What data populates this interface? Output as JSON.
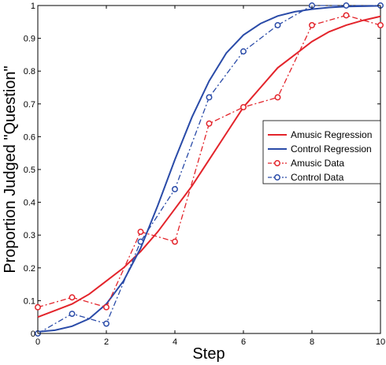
{
  "chart_data": {
    "type": "line",
    "title": "",
    "xlabel": "Step",
    "ylabel": "Proportion Judged \"Question\"",
    "xlim": [
      0,
      10
    ],
    "ylim": [
      0,
      1
    ],
    "x_ticks": [
      0,
      2,
      4,
      6,
      8,
      10
    ],
    "y_ticks": [
      0,
      0.1,
      0.2,
      0.3,
      0.4,
      0.5,
      0.6,
      0.7,
      0.8,
      0.9,
      1
    ],
    "y_tick_labels": [
      "0",
      "0.1",
      "0.2",
      "0.3",
      "0.4",
      "0.5",
      "0.6",
      "0.7",
      "0.8",
      "0.9",
      "1"
    ],
    "x_tick_labels": [
      "0",
      "2",
      "4",
      "6",
      "8",
      "10"
    ],
    "grid": false,
    "legend_position": "right",
    "series": [
      {
        "name": "Amusic Regression",
        "kind": "regression",
        "color": "#e3242b",
        "style": "solid",
        "x": [
          0,
          0.5,
          1,
          1.5,
          2,
          2.5,
          3,
          3.5,
          4,
          4.5,
          5,
          5.5,
          6,
          6.5,
          7,
          7.5,
          8,
          8.5,
          9,
          9.5,
          10
        ],
        "values": [
          0.05,
          0.07,
          0.09,
          0.12,
          0.16,
          0.2,
          0.25,
          0.31,
          0.38,
          0.45,
          0.53,
          0.61,
          0.69,
          0.75,
          0.81,
          0.85,
          0.89,
          0.92,
          0.94,
          0.955,
          0.967
        ]
      },
      {
        "name": "Control Regression",
        "kind": "regression",
        "color": "#2a4ba8",
        "style": "solid",
        "x": [
          0,
          0.5,
          1,
          1.5,
          2,
          2.5,
          3,
          3.5,
          4,
          4.5,
          5,
          5.5,
          6,
          6.5,
          7,
          7.5,
          8,
          8.5,
          9,
          9.5,
          10
        ],
        "values": [
          0.005,
          0.01,
          0.022,
          0.045,
          0.09,
          0.16,
          0.26,
          0.39,
          0.53,
          0.66,
          0.77,
          0.855,
          0.91,
          0.945,
          0.968,
          0.981,
          0.989,
          0.994,
          0.997,
          0.998,
          0.999
        ]
      },
      {
        "name": "Amusic Data",
        "kind": "data",
        "color": "#e3242b",
        "style": "dashdot",
        "x": [
          0,
          1,
          2,
          3,
          4,
          5,
          6,
          7,
          8,
          9,
          10
        ],
        "values": [
          0.08,
          0.11,
          0.08,
          0.31,
          0.28,
          0.64,
          0.69,
          0.72,
          0.94,
          0.97,
          0.94
        ]
      },
      {
        "name": "Control Data",
        "kind": "data",
        "color": "#2a4ba8",
        "style": "dashdot",
        "x": [
          0,
          1,
          2,
          3,
          4,
          5,
          6,
          7,
          8,
          9,
          10
        ],
        "values": [
          0.0,
          0.06,
          0.03,
          0.28,
          0.44,
          0.72,
          0.86,
          0.94,
          1.0,
          1.0,
          1.0
        ]
      }
    ]
  }
}
